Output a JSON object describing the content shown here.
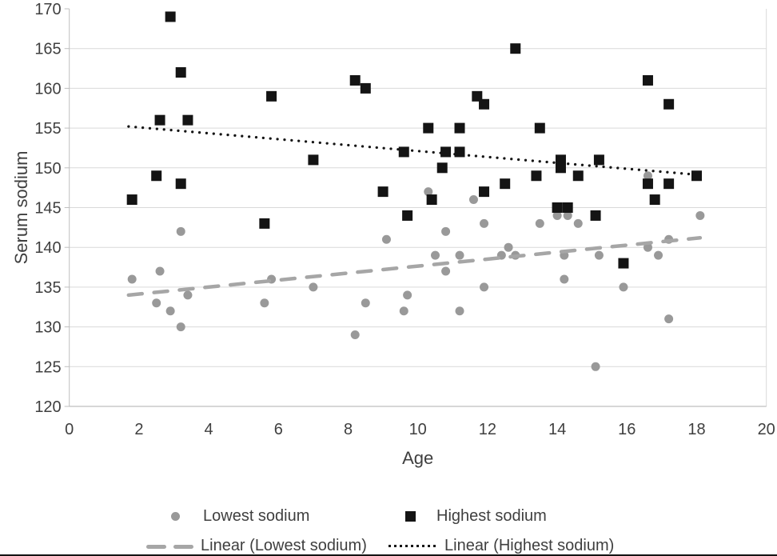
{
  "legend": {
    "items": [
      {
        "label": "Lowest sodium",
        "marker": "circle",
        "color": "#999999"
      },
      {
        "label": "Highest sodium",
        "marker": "square",
        "color": "#141414"
      },
      {
        "label": "Linear (Lowest sodium)",
        "marker": "dashed-line",
        "color": "#a6a6a6"
      },
      {
        "label": "Linear (Highest sodium)",
        "marker": "dotted-line",
        "color": "#141414"
      }
    ]
  },
  "chart_data": {
    "type": "scatter",
    "title": "",
    "xlabel": "Age",
    "ylabel": "Serum sodium",
    "xlim": [
      0,
      20
    ],
    "ylim": [
      120,
      170
    ],
    "x_ticks": [
      0,
      2,
      4,
      6,
      8,
      10,
      12,
      14,
      16,
      18,
      20
    ],
    "y_ticks": [
      120,
      125,
      130,
      135,
      140,
      145,
      150,
      155,
      160,
      165,
      170
    ],
    "grid": true,
    "legend_position": "bottom",
    "colors": {
      "gridline": "#d9d9d9",
      "axis_line": "#bfbfbf",
      "tick_text": "#3f3f3f"
    },
    "series": [
      {
        "name": "Lowest sodium",
        "marker": "circle",
        "color": "#999999",
        "points": [
          [
            1.8,
            136
          ],
          [
            2.5,
            133
          ],
          [
            2.6,
            137
          ],
          [
            2.9,
            132
          ],
          [
            3.2,
            142
          ],
          [
            3.2,
            130
          ],
          [
            3.4,
            134
          ],
          [
            5.6,
            133
          ],
          [
            5.8,
            136
          ],
          [
            7.0,
            135
          ],
          [
            8.2,
            129
          ],
          [
            8.5,
            133
          ],
          [
            9.1,
            141
          ],
          [
            9.6,
            132
          ],
          [
            9.7,
            134
          ],
          [
            10.3,
            147
          ],
          [
            10.5,
            139
          ],
          [
            10.8,
            142
          ],
          [
            10.8,
            137
          ],
          [
            11.2,
            139
          ],
          [
            11.2,
            132
          ],
          [
            11.6,
            146
          ],
          [
            11.9,
            143
          ],
          [
            11.9,
            135
          ],
          [
            12.4,
            139
          ],
          [
            12.6,
            140
          ],
          [
            12.8,
            139
          ],
          [
            13.5,
            143
          ],
          [
            14.0,
            144
          ],
          [
            14.3,
            144
          ],
          [
            14.2,
            139
          ],
          [
            14.2,
            136
          ],
          [
            14.6,
            143
          ],
          [
            15.1,
            125
          ],
          [
            15.2,
            139
          ],
          [
            15.9,
            135
          ],
          [
            16.6,
            149
          ],
          [
            16.6,
            140
          ],
          [
            16.9,
            139
          ],
          [
            17.2,
            141
          ],
          [
            17.2,
            131
          ],
          [
            18.1,
            144
          ]
        ]
      },
      {
        "name": "Highest sodium",
        "marker": "square",
        "color": "#141414",
        "points": [
          [
            1.8,
            146
          ],
          [
            2.5,
            149
          ],
          [
            2.6,
            156
          ],
          [
            2.9,
            169
          ],
          [
            3.2,
            162
          ],
          [
            3.2,
            148
          ],
          [
            3.4,
            156
          ],
          [
            5.6,
            143
          ],
          [
            5.8,
            159
          ],
          [
            7.0,
            151
          ],
          [
            8.2,
            161
          ],
          [
            8.5,
            160
          ],
          [
            9.0,
            147
          ],
          [
            9.6,
            152
          ],
          [
            9.7,
            144
          ],
          [
            10.3,
            155
          ],
          [
            10.4,
            146
          ],
          [
            10.7,
            150
          ],
          [
            10.8,
            152
          ],
          [
            11.2,
            152
          ],
          [
            11.2,
            155
          ],
          [
            11.7,
            159
          ],
          [
            11.9,
            158
          ],
          [
            11.9,
            147
          ],
          [
            12.5,
            148
          ],
          [
            12.8,
            165
          ],
          [
            13.4,
            149
          ],
          [
            13.5,
            155
          ],
          [
            14.0,
            145
          ],
          [
            14.3,
            145
          ],
          [
            14.1,
            151
          ],
          [
            14.1,
            150
          ],
          [
            14.6,
            149
          ],
          [
            15.1,
            144
          ],
          [
            15.2,
            151
          ],
          [
            15.9,
            138
          ],
          [
            16.6,
            161
          ],
          [
            16.6,
            148
          ],
          [
            16.8,
            146
          ],
          [
            17.2,
            158
          ],
          [
            17.2,
            148
          ],
          [
            18.0,
            149
          ]
        ]
      }
    ],
    "trend_lines": [
      {
        "name": "Linear (Lowest sodium)",
        "style": "dashed",
        "color": "#a6a6a6",
        "from": [
          1.7,
          134.0
        ],
        "to": [
          18.1,
          141.2
        ]
      },
      {
        "name": "Linear (Highest sodium)",
        "style": "dotted",
        "color": "#141414",
        "from": [
          1.7,
          155.2
        ],
        "to": [
          18.1,
          149.1
        ]
      }
    ]
  }
}
